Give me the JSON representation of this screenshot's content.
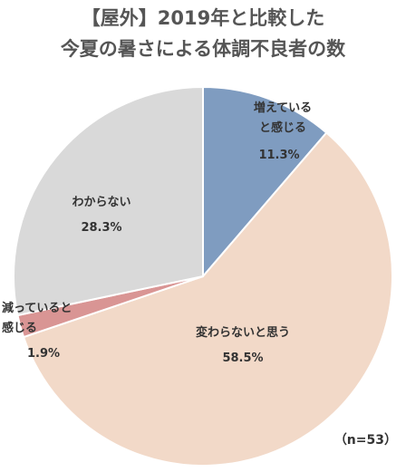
{
  "chart_data": {
    "type": "pie",
    "title_line1": "【屋外】2019年と比較した",
    "title_line2": "今夏の暑さによる体調不良者の数",
    "note": "（n=53）",
    "slices": [
      {
        "name_lines": [
          "増えている",
          "と感じる"
        ],
        "value": 11.3,
        "value_label": "11.3%",
        "color": "#7f9cc0"
      },
      {
        "name_lines": [
          "変わらないと思う"
        ],
        "value": 58.5,
        "value_label": "58.5%",
        "color": "#f2d9c8"
      },
      {
        "name_lines": [
          "減っていると",
          "感じる"
        ],
        "value": 1.9,
        "value_label": "1.9%",
        "color": "#d99594"
      },
      {
        "name_lines": [
          "わからない"
        ],
        "value": 28.3,
        "value_label": "28.3%",
        "color": "#d9d9d9"
      }
    ]
  }
}
